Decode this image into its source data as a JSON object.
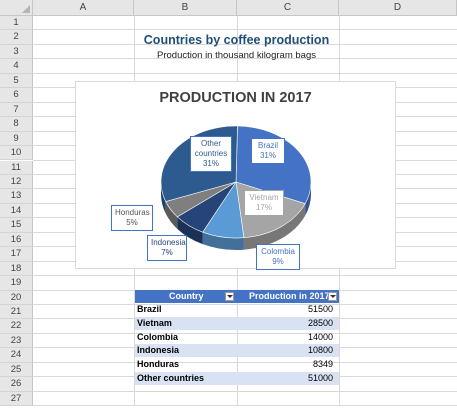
{
  "columns": [
    "A",
    "B",
    "C",
    "D"
  ],
  "rows": [
    "1",
    "2",
    "3",
    "4",
    "5",
    "6",
    "7",
    "8",
    "9",
    "10",
    "11",
    "12",
    "13",
    "14",
    "15",
    "16",
    "17",
    "18",
    "19",
    "20",
    "21",
    "22",
    "23",
    "24",
    "25",
    "26",
    "27"
  ],
  "sheet": {
    "title": "Countries by coffee production",
    "subtitle": "Production in thousand kilogram bags"
  },
  "chart_data": {
    "type": "pie",
    "title": "PRODUCTION IN 2017",
    "categories": [
      "Brazil",
      "Vietnam",
      "Colombia",
      "Indonesia",
      "Honduras",
      "Other countries"
    ],
    "values": [
      31,
      17,
      9,
      7,
      5,
      31
    ],
    "value_unit": "%",
    "labels": [
      {
        "name": "Brazil",
        "pct": "31%"
      },
      {
        "name": "Vietnam",
        "pct": "17%"
      },
      {
        "name": "Colombia",
        "pct": "9%"
      },
      {
        "name": "Indonesia",
        "pct": "7%"
      },
      {
        "name": "Honduras",
        "pct": "5%"
      },
      {
        "name": "Other",
        "name2": "countries",
        "pct": "31%"
      }
    ],
    "colors": {
      "Brazil": "#4472c4",
      "Vietnam": "#a5a5a5",
      "Colombia": "#5b9bd5",
      "Indonesia": "#264478",
      "Honduras": "#7f7f7f",
      "Other countries": "#2e5b8f"
    },
    "legend": "none",
    "style": "3d-pie"
  },
  "table": {
    "headers": [
      "Country",
      "Production in 2017"
    ],
    "rows": [
      {
        "country": "Brazil",
        "value": "51500"
      },
      {
        "country": "Vietnam",
        "value": "28500"
      },
      {
        "country": "Colombia",
        "value": "14000"
      },
      {
        "country": "Indonesia",
        "value": "10800"
      },
      {
        "country": "Honduras",
        "value": "8349"
      },
      {
        "country": "Other countries",
        "value": "51000"
      }
    ]
  }
}
